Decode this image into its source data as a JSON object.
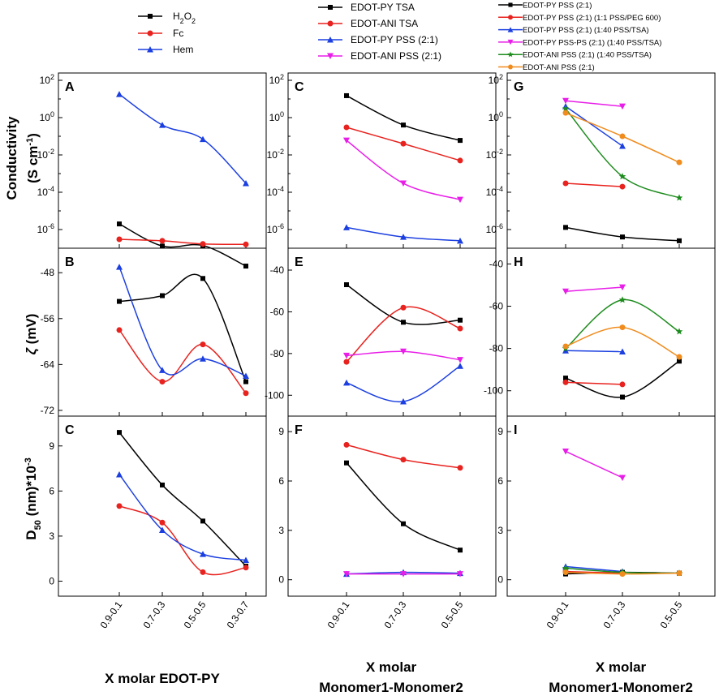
{
  "figure": {
    "col1_xlabel": "X molar EDOT-PY",
    "col2_xlabel_l1": "X molar",
    "col2_xlabel_l2": "Monomer1-Monomer2",
    "col3_xlabel_l1": "X molar",
    "col3_xlabel_l2": "Monomer1-Monomer2",
    "row1_ylabel_l1": "Conductivity",
    "row1_ylabel_l2": "(S cm",
    "row1_ylabel_sup": "-1",
    "row1_ylabel_end": ")",
    "row2_ylabel_greek": "ζ",
    "row2_ylabel_rest": " (mV)",
    "row3_ylabel_base": "D",
    "row3_ylabel_sub": "50",
    "row3_ylabel_rest": " (nm)*10",
    "row3_ylabel_sup": "-3"
  },
  "legends": {
    "col1": [
      {
        "parts": [
          "H",
          "2",
          "O",
          "2"
        ],
        "label": "H2O2",
        "color": "#000000",
        "marker": "square"
      },
      {
        "label": "Fc",
        "color": "#e8221e",
        "marker": "circle"
      },
      {
        "label": "Hem",
        "color": "#1b3fe0",
        "marker": "triangle"
      }
    ],
    "col2": [
      {
        "label": "EDOT-PY TSA",
        "color": "#000000",
        "marker": "square"
      },
      {
        "label": "EDOT-ANI TSA",
        "color": "#e8221e",
        "marker": "circle"
      },
      {
        "label": "EDOT-PY PSS (2:1)",
        "color": "#1b3fe0",
        "marker": "triangle"
      },
      {
        "label": "EDOT-ANI PSS (2:1)",
        "color": "#e81ee8",
        "marker": "tridown"
      }
    ],
    "col3": [
      {
        "label": "EDOT-PY PSS (2:1)",
        "color": "#000000",
        "marker": "square"
      },
      {
        "label": "EDOT-PY PSS (2:1) (1:1 PSS/PEG 600)",
        "color": "#e8221e",
        "marker": "circle"
      },
      {
        "label": "EDOT-PY PSS (2:1) (1:40 PSS/TSA)",
        "color": "#1b3fe0",
        "marker": "triangle"
      },
      {
        "label": "EDOT-PY PSS-PS (2:1) (1:40 PSS/TSA)",
        "color": "#e81ee8",
        "marker": "tridown"
      },
      {
        "label": "EDOT-ANI PSS (2:1) (1:40 PSS/TSA)",
        "color": "#1e8c1e",
        "marker": "star"
      },
      {
        "label": "EDOT-ANI PSS (2:1)",
        "color": "#f08c1e",
        "marker": "circle"
      }
    ]
  },
  "chart_data": [
    {
      "panel": "A",
      "type": "line",
      "scale": "log",
      "ylim_exp": [
        -7,
        2
      ],
      "yticks": [
        {
          "base": "10",
          "exp": "2"
        },
        {
          "base": "10",
          "exp": "0"
        },
        {
          "base": "10",
          "exp": "-2"
        },
        {
          "base": "10",
          "exp": "-4"
        },
        {
          "base": "10",
          "exp": "-6"
        }
      ],
      "ytick_values": [
        2,
        0,
        -2,
        -4,
        -6
      ],
      "categories": [
        "0.9-0.1",
        "0.7-0.3",
        "0.5-0.5",
        "0.3-0.7"
      ],
      "series": [
        {
          "name": "H2O2",
          "values": [
            2e-06,
            1.3e-07,
            1.4e-07,
            1.1e-08
          ]
        },
        {
          "name": "Fc",
          "values": [
            3e-07,
            2.5e-07,
            1.7e-07,
            1.6e-07
          ]
        },
        {
          "name": "Hem",
          "values": [
            18,
            0.4,
            0.07,
            0.0003
          ]
        }
      ]
    },
    {
      "panel": "B",
      "type": "line",
      "scale": "linear",
      "ylim": [
        -73,
        -45
      ],
      "yticks": [
        -48,
        -56,
        -64,
        -72
      ],
      "categories": [
        "0.9-0.1",
        "0.7-0.3",
        "0.5-0.5",
        "0.3-0.7"
      ],
      "series": [
        {
          "name": "H2O2",
          "values": [
            -53,
            -52,
            -49,
            -67
          ]
        },
        {
          "name": "Fc",
          "values": [
            -58,
            -67,
            -60.5,
            -69
          ]
        },
        {
          "name": "Hem",
          "values": [
            -47,
            -65,
            -63,
            -66
          ]
        }
      ]
    },
    {
      "panel": "C",
      "type": "line",
      "scale": "linear",
      "ylim": [
        -1,
        10.5
      ],
      "yticks": [
        9,
        6,
        3,
        0
      ],
      "categories": [
        "0.9-0.1",
        "0.7-0.3",
        "0.5-0.5",
        "0.3-0.7"
      ],
      "series": [
        {
          "name": "H2O2",
          "values": [
            9.9,
            6.4,
            4.0,
            1.0
          ]
        },
        {
          "name": "Fc",
          "values": [
            5.0,
            3.9,
            0.6,
            0.9
          ]
        },
        {
          "name": "Hem",
          "values": [
            7.1,
            3.4,
            1.8,
            1.4
          ]
        }
      ]
    },
    {
      "panel": "C",
      "type": "line",
      "scale": "log",
      "ylim_exp": [
        -7,
        2
      ],
      "yticks": [
        {
          "base": "10",
          "exp": "2"
        },
        {
          "base": "10",
          "exp": "0"
        },
        {
          "base": "10",
          "exp": "-2"
        },
        {
          "base": "10",
          "exp": "-4"
        },
        {
          "base": "10",
          "exp": "-6"
        }
      ],
      "ytick_values": [
        2,
        0,
        -2,
        -4,
        -6
      ],
      "categories": [
        "0.9-0.1",
        "0.7-0.3",
        "0.5-0.5"
      ],
      "series": [
        {
          "name": "EDOT-PY TSA",
          "values": [
            15,
            0.4,
            0.06
          ]
        },
        {
          "name": "EDOT-ANI TSA",
          "values": [
            0.3,
            0.04,
            0.005
          ]
        },
        {
          "name": "EDOT-PY PSS (2:1)",
          "values": [
            1.3e-06,
            4e-07,
            2.5e-07
          ]
        },
        {
          "name": "EDOT-ANI PSS (2:1)",
          "values": [
            0.06,
            0.0003,
            4e-05
          ]
        }
      ]
    },
    {
      "panel": "E",
      "type": "line",
      "scale": "linear",
      "ylim": [
        -110,
        -33
      ],
      "yticks": [
        -40,
        -60,
        -80,
        -100
      ],
      "categories": [
        "0.9-0.1",
        "0.7-0.3",
        "0.5-0.5"
      ],
      "series": [
        {
          "name": "EDOT-PY TSA",
          "values": [
            -47,
            -65,
            -64
          ]
        },
        {
          "name": "EDOT-ANI TSA",
          "values": [
            -84,
            -58,
            -68
          ]
        },
        {
          "name": "EDOT-PY PSS (2:1)",
          "values": [
            -94,
            -103,
            -86
          ]
        },
        {
          "name": "EDOT-ANI PSS (2:1)",
          "values": [
            -81,
            -79,
            -83
          ]
        }
      ]
    },
    {
      "panel": "F",
      "type": "line",
      "scale": "linear",
      "ylim": [
        -1,
        9.5
      ],
      "yticks": [
        9,
        6,
        3,
        0
      ],
      "categories": [
        "0.9-0.1",
        "0.7-0.3",
        "0.5-0.5"
      ],
      "series": [
        {
          "name": "EDOT-PY TSA",
          "values": [
            7.1,
            3.4,
            1.8
          ]
        },
        {
          "name": "EDOT-ANI TSA",
          "values": [
            8.2,
            7.3,
            6.8
          ]
        },
        {
          "name": "EDOT-PY PSS (2:1)",
          "values": [
            0.35,
            0.45,
            0.4
          ]
        },
        {
          "name": "EDOT-ANI PSS (2:1)",
          "values": [
            0.35,
            0.35,
            0.35
          ]
        }
      ]
    },
    {
      "panel": "G",
      "type": "line",
      "scale": "log",
      "ylim_exp": [
        -7,
        2
      ],
      "yticks": [
        {
          "base": "10",
          "exp": "2"
        },
        {
          "base": "10",
          "exp": "0"
        },
        {
          "base": "10",
          "exp": "-2"
        },
        {
          "base": "10",
          "exp": "-4"
        },
        {
          "base": "10",
          "exp": "-6"
        }
      ],
      "ytick_values": [
        2,
        0,
        -2,
        -4,
        -6
      ],
      "categories": [
        "0.9-0.1",
        "0.7-0.3",
        "0.5-0.5"
      ],
      "series": [
        {
          "name": "EDOT-PY PSS (2:1)",
          "values": [
            1.3e-06,
            4e-07,
            2.5e-07
          ]
        },
        {
          "name": "EDOT-PY PSS (2:1) (1:1 PSS/PEG 600)",
          "values": [
            0.0003,
            0.0002,
            null
          ]
        },
        {
          "name": "EDOT-PY PSS (2:1) (1:40 PSS/TSA)",
          "values": [
            4.0,
            0.03,
            null
          ]
        },
        {
          "name": "EDOT-PY PSS-PS (2:1) (1:40 PSS/TSA)",
          "values": [
            8.0,
            4.0,
            null
          ]
        },
        {
          "name": "EDOT-ANI PSS (2:1) (1:40 PSS/TSA)",
          "values": [
            3.0,
            0.0007,
            5e-05
          ]
        },
        {
          "name": "EDOT-ANI PSS (2:1)",
          "values": [
            1.8,
            0.1,
            0.004
          ]
        }
      ]
    },
    {
      "panel": "H",
      "type": "line",
      "scale": "linear",
      "ylim": [
        -112,
        -36
      ],
      "yticks": [
        -40,
        -60,
        -80,
        -100
      ],
      "categories": [
        "0.9-0.1",
        "0.7-0.3",
        "0.5-0.5"
      ],
      "series": [
        {
          "name": "EDOT-PY PSS (2:1)",
          "values": [
            -94,
            -103,
            -86
          ]
        },
        {
          "name": "EDOT-PY PSS (2:1) (1:1 PSS/PEG 600)",
          "values": [
            -96,
            -97,
            null
          ]
        },
        {
          "name": "EDOT-PY PSS (2:1) (1:40 PSS/TSA)",
          "values": [
            -81,
            -81.5,
            null
          ]
        },
        {
          "name": "EDOT-PY PSS-PS (2:1) (1:40 PSS/TSA)",
          "values": [
            -53,
            -51,
            null
          ]
        },
        {
          "name": "EDOT-ANI PSS (2:1) (1:40 PSS/TSA)",
          "values": [
            -80,
            -57,
            -72
          ]
        },
        {
          "name": "EDOT-ANI PSS (2:1)",
          "values": [
            -79,
            -70,
            -84
          ]
        }
      ]
    },
    {
      "panel": "I",
      "type": "line",
      "scale": "linear",
      "ylim": [
        -1,
        9.5
      ],
      "yticks": [
        9,
        6,
        3,
        0
      ],
      "categories": [
        "0.9-0.1",
        "0.7-0.3",
        "0.5-0.5"
      ],
      "series": [
        {
          "name": "EDOT-PY PSS (2:1)",
          "values": [
            0.35,
            0.45,
            0.4
          ]
        },
        {
          "name": "EDOT-PY PSS (2:1) (1:1 PSS/PEG 600)",
          "values": [
            0.5,
            0.4,
            null
          ]
        },
        {
          "name": "EDOT-PY PSS (2:1) (1:40 PSS/TSA)",
          "values": [
            0.8,
            0.5,
            null
          ]
        },
        {
          "name": "EDOT-PY PSS-PS (2:1) (1:40 PSS/TSA)",
          "values": [
            7.8,
            6.2,
            null
          ]
        },
        {
          "name": "EDOT-ANI PSS (2:1) (1:40 PSS/TSA)",
          "values": [
            0.7,
            0.45,
            0.4
          ]
        },
        {
          "name": "EDOT-ANI PSS (2:1)",
          "values": [
            0.45,
            0.35,
            0.4
          ]
        }
      ]
    }
  ]
}
